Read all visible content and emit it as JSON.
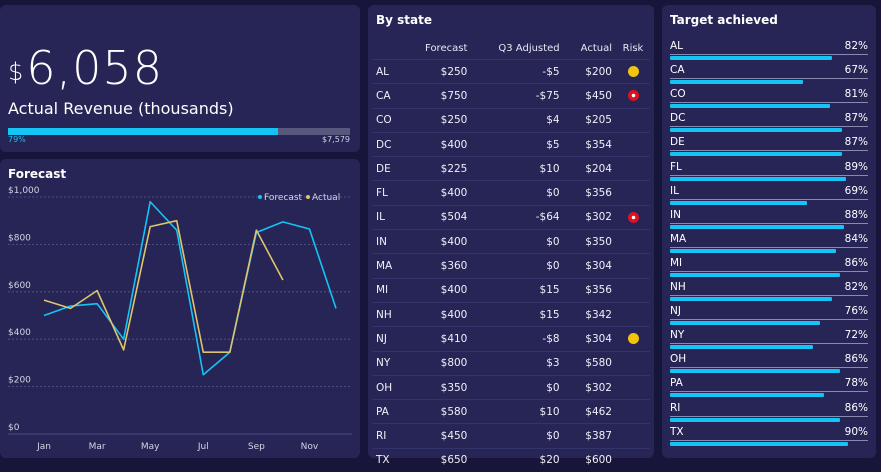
{
  "revenue": {
    "currency": "$",
    "amount": "6,058",
    "label": "Actual Revenue (thousands)",
    "progress": 0.79,
    "progress_label": "79%",
    "target_label": "$7,579"
  },
  "forecast": {
    "title": "Forecast",
    "legend": [
      {
        "name": "Forecast",
        "color": "#13c4f4"
      },
      {
        "name": "Actual",
        "color": "#e0c46c"
      }
    ]
  },
  "chart_data": {
    "type": "line",
    "title": "Forecast",
    "x": [
      "Jan",
      "Feb",
      "Mar",
      "Apr",
      "May",
      "Jun",
      "Jul",
      "Aug",
      "Sep",
      "Oct",
      "Nov",
      "Dec"
    ],
    "x_tick_labels": [
      "Jan",
      "Mar",
      "May",
      "Jul",
      "Sep",
      "Nov"
    ],
    "y_tick_labels": [
      "$0",
      "$200",
      "$400",
      "$600",
      "$800",
      "$1,000"
    ],
    "ylim": [
      0,
      1000
    ],
    "grid": true,
    "legend_position": "top-right",
    "series": [
      {
        "name": "Forecast",
        "color": "#13c4f4",
        "values": [
          500,
          540,
          550,
          400,
          980,
          860,
          250,
          345,
          850,
          895,
          865,
          530
        ]
      },
      {
        "name": "Actual",
        "color": "#e0c46c",
        "values": [
          565,
          530,
          605,
          355,
          875,
          900,
          345,
          345,
          860,
          650,
          null,
          null
        ]
      }
    ]
  },
  "by_state": {
    "title": "By state",
    "columns": [
      "",
      "Forecast",
      "Q3 Adjusted",
      "Actual",
      "Risk"
    ],
    "rows": [
      {
        "state": "AL",
        "forecast": "$250",
        "adjusted": "-$5",
        "actual": "$200",
        "risk": "yellow"
      },
      {
        "state": "CA",
        "forecast": "$750",
        "adjusted": "-$75",
        "actual": "$450",
        "risk": "red"
      },
      {
        "state": "CO",
        "forecast": "$250",
        "adjusted": "$4",
        "actual": "$205",
        "risk": ""
      },
      {
        "state": "DC",
        "forecast": "$400",
        "adjusted": "$5",
        "actual": "$354",
        "risk": ""
      },
      {
        "state": "DE",
        "forecast": "$225",
        "adjusted": "$10",
        "actual": "$204",
        "risk": ""
      },
      {
        "state": "FL",
        "forecast": "$400",
        "adjusted": "$0",
        "actual": "$356",
        "risk": ""
      },
      {
        "state": "IL",
        "forecast": "$504",
        "adjusted": "-$64",
        "actual": "$302",
        "risk": "red"
      },
      {
        "state": "IN",
        "forecast": "$400",
        "adjusted": "$0",
        "actual": "$350",
        "risk": ""
      },
      {
        "state": "MA",
        "forecast": "$360",
        "adjusted": "$0",
        "actual": "$304",
        "risk": ""
      },
      {
        "state": "MI",
        "forecast": "$400",
        "adjusted": "$15",
        "actual": "$356",
        "risk": ""
      },
      {
        "state": "NH",
        "forecast": "$400",
        "adjusted": "$15",
        "actual": "$342",
        "risk": ""
      },
      {
        "state": "NJ",
        "forecast": "$410",
        "adjusted": "-$8",
        "actual": "$304",
        "risk": "yellow"
      },
      {
        "state": "NY",
        "forecast": "$800",
        "adjusted": "$3",
        "actual": "$580",
        "risk": ""
      },
      {
        "state": "OH",
        "forecast": "$350",
        "adjusted": "$0",
        "actual": "$302",
        "risk": ""
      },
      {
        "state": "PA",
        "forecast": "$580",
        "adjusted": "$10",
        "actual": "$462",
        "risk": ""
      },
      {
        "state": "RI",
        "forecast": "$450",
        "adjusted": "$0",
        "actual": "$387",
        "risk": ""
      },
      {
        "state": "TX",
        "forecast": "$650",
        "adjusted": "$20",
        "actual": "$600",
        "risk": ""
      }
    ]
  },
  "target": {
    "title": "Target achieved",
    "items": [
      {
        "state": "AL",
        "pct": "82%",
        "value": 0.82
      },
      {
        "state": "CA",
        "pct": "67%",
        "value": 0.67
      },
      {
        "state": "CO",
        "pct": "81%",
        "value": 0.81
      },
      {
        "state": "DC",
        "pct": "87%",
        "value": 0.87
      },
      {
        "state": "DE",
        "pct": "87%",
        "value": 0.87
      },
      {
        "state": "FL",
        "pct": "89%",
        "value": 0.89
      },
      {
        "state": "IL",
        "pct": "69%",
        "value": 0.69
      },
      {
        "state": "IN",
        "pct": "88%",
        "value": 0.88
      },
      {
        "state": "MA",
        "pct": "84%",
        "value": 0.84
      },
      {
        "state": "MI",
        "pct": "86%",
        "value": 0.86
      },
      {
        "state": "NH",
        "pct": "82%",
        "value": 0.82
      },
      {
        "state": "NJ",
        "pct": "76%",
        "value": 0.76
      },
      {
        "state": "NY",
        "pct": "72%",
        "value": 0.72
      },
      {
        "state": "OH",
        "pct": "86%",
        "value": 0.86
      },
      {
        "state": "PA",
        "pct": "78%",
        "value": 0.78
      },
      {
        "state": "RI",
        "pct": "86%",
        "value": 0.86
      },
      {
        "state": "TX",
        "pct": "90%",
        "value": 0.9
      }
    ]
  }
}
